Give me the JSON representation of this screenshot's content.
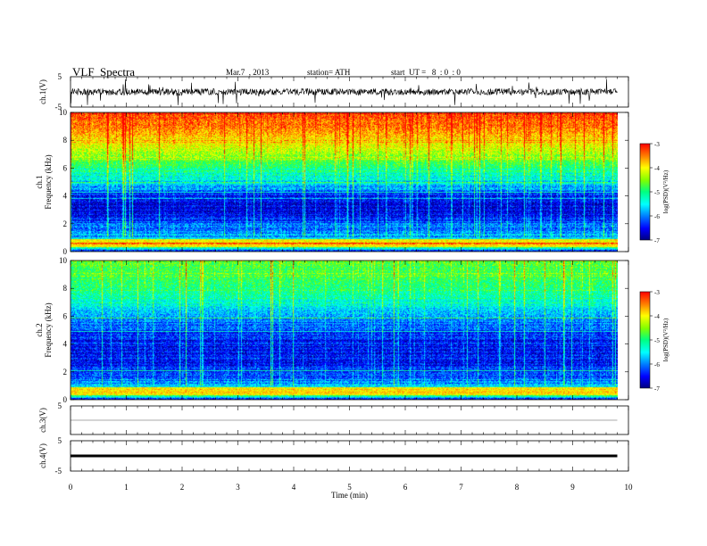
{
  "header": {
    "title": "VLF  Spectra",
    "date": "Mar.7  , 2013",
    "station": "station= ATH",
    "start": "start  UT =   8  : 0  : 0"
  },
  "chart_data": [
    {
      "type": "line",
      "title": "",
      "ylabel": "ch.1(V)",
      "ylim": [
        -5,
        5
      ],
      "yticks": [
        "5",
        "-5"
      ],
      "description_level": 0,
      "color": "#000000"
    },
    {
      "type": "heatmap",
      "ylabel": "ch.1\nFrequency  (kHz)",
      "ylabel_lines": [
        "ch.1",
        "Frequency  (kHz)"
      ],
      "ylim": [
        0,
        10
      ],
      "yticks": [
        "0",
        "2",
        "4",
        "6",
        "8",
        "10"
      ],
      "colorbar": {
        "label": "log(PSD)(V²/Hz)",
        "range": [
          -7,
          -3
        ],
        "ticks": [
          "-3",
          "-4",
          "-5",
          "-6",
          "-7"
        ]
      },
      "profile_by_khz": [
        [
          0,
          -6.5
        ],
        [
          0.5,
          -3.6
        ],
        [
          1,
          -5.8
        ],
        [
          2,
          -6.2
        ],
        [
          3,
          -6.6
        ],
        [
          4,
          -6.4
        ],
        [
          5,
          -5.6
        ],
        [
          6,
          -5.0
        ],
        [
          7,
          -4.4
        ],
        [
          8,
          -3.9
        ],
        [
          9,
          -3.5
        ],
        [
          10,
          -3.3
        ]
      ]
    },
    {
      "type": "heatmap",
      "ylabel": "ch.2\nFrequency  (kHz)",
      "ylabel_lines": [
        "ch.2",
        "Frequency  (kHz)"
      ],
      "ylim": [
        0,
        10
      ],
      "yticks": [
        "0",
        "2",
        "4",
        "6",
        "8",
        "10"
      ],
      "colorbar": {
        "label": "log(PSD)(V²/Hz)",
        "range": [
          -7,
          -3
        ],
        "ticks": [
          "-3",
          "-4",
          "-5",
          "-6",
          "-7"
        ]
      },
      "profile_by_khz": [
        [
          0,
          -6.4
        ],
        [
          0.5,
          -3.9
        ],
        [
          1,
          -5.9
        ],
        [
          2,
          -6.3
        ],
        [
          3,
          -6.5
        ],
        [
          4,
          -6.5
        ],
        [
          5,
          -6.3
        ],
        [
          6,
          -5.9
        ],
        [
          7,
          -5.4
        ],
        [
          8,
          -5.0
        ],
        [
          9,
          -4.8
        ],
        [
          10,
          -4.7
        ]
      ]
    },
    {
      "type": "line",
      "ylabel": "ch.3(V)",
      "ylim": [
        -5,
        5
      ],
      "yticks": [
        "5"
      ],
      "level": 0,
      "color": "#555555"
    },
    {
      "type": "line",
      "ylabel": "ch.4(V)",
      "ylim": [
        -5,
        5
      ],
      "yticks": [
        "5",
        "-5"
      ],
      "level": 0,
      "color": "#000000"
    }
  ],
  "xaxis": {
    "label": "Time  (min)",
    "range": [
      0,
      10
    ],
    "ticks": [
      "0",
      "1",
      "2",
      "3",
      "4",
      "5",
      "6",
      "7",
      "8",
      "9",
      "10"
    ],
    "data_end_min": 9.8
  },
  "colors": {
    "colormap": [
      "#000080",
      "#0000ff",
      "#0080ff",
      "#00ffff",
      "#00ff80",
      "#80ff00",
      "#ffff00",
      "#ff8000",
      "#ff0000"
    ]
  }
}
